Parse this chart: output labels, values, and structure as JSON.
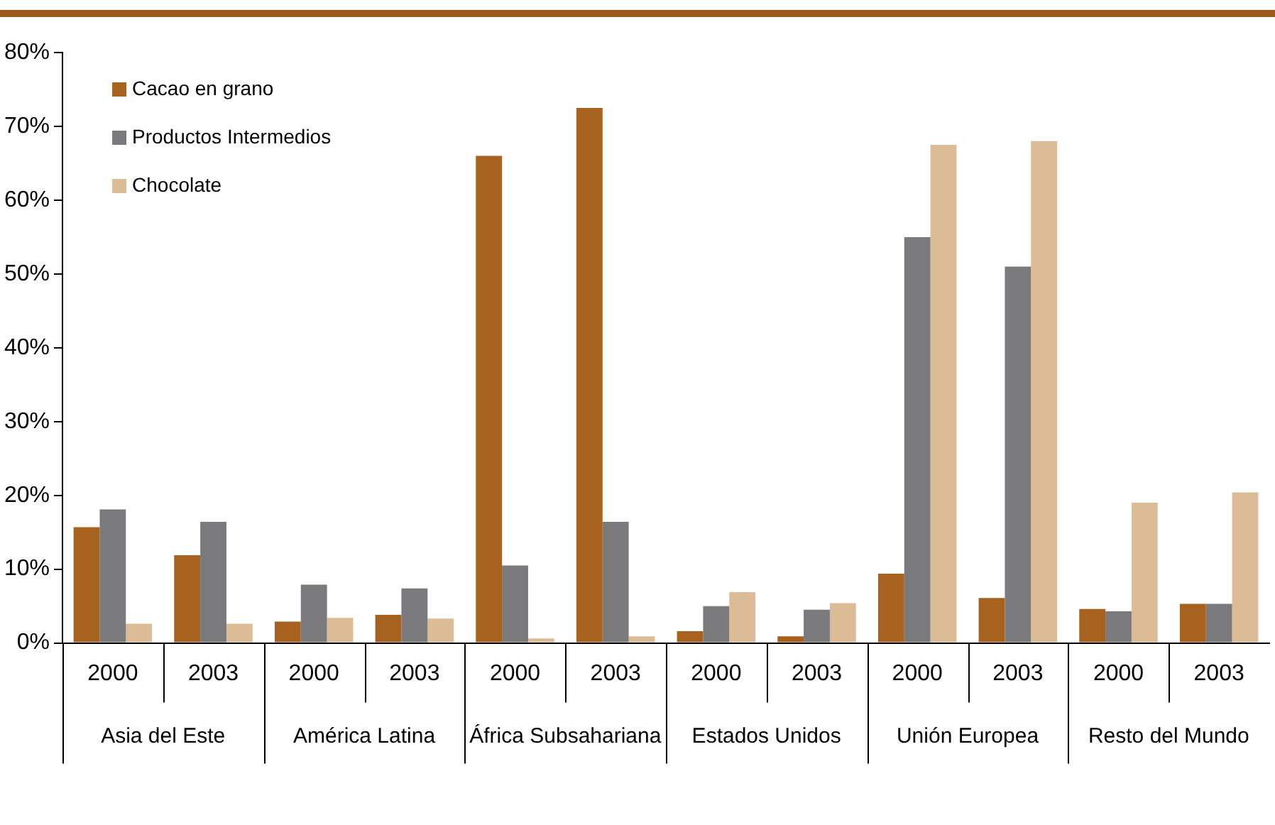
{
  "chart_data": {
    "type": "bar",
    "categories": [
      "2000",
      "2003",
      "2000",
      "2003",
      "2000",
      "2003",
      "2000",
      "2003",
      "2000",
      "2003",
      "2000",
      "2003"
    ],
    "annotations": [
      "Asia del Este",
      "América Latina",
      "África Subsahariana",
      "Estados Unidos",
      "Unión Europea",
      "Resto del Mundo"
    ],
    "series": [
      {
        "name": "Cacao en grano",
        "color": "#a8621f",
        "values": [
          15.7,
          11.9,
          2.9,
          3.8,
          66,
          72.5,
          1.6,
          0.9,
          9.4,
          6.1,
          4.6,
          5.3
        ]
      },
      {
        "name": "Productos Intermedios",
        "color": "#7a7a7c",
        "values": [
          18.1,
          16.4,
          7.9,
          7.4,
          10.5,
          16.4,
          5,
          4.5,
          55,
          51,
          4.3,
          5.3
        ]
      },
      {
        "name": "Chocolate",
        "color": "#dcbc96",
        "values": [
          2.6,
          2.6,
          3.4,
          3.3,
          0.6,
          0.9,
          6.9,
          5.4,
          67.5,
          68,
          19,
          20.4
        ]
      }
    ],
    "ylim": [
      0,
      80
    ],
    "yticks": [
      {
        "value": 0,
        "label": "0%"
      },
      {
        "value": 10,
        "label": "10%"
      },
      {
        "value": 20,
        "label": "20%"
      },
      {
        "value": 30,
        "label": "30%"
      },
      {
        "value": 40,
        "label": "40%"
      },
      {
        "value": 50,
        "label": "50%"
      },
      {
        "value": 60,
        "label": "60%"
      },
      {
        "value": 70,
        "label": "70%"
      },
      {
        "value": 80,
        "label": "80%"
      }
    ],
    "grid": false,
    "legend": "top left"
  }
}
